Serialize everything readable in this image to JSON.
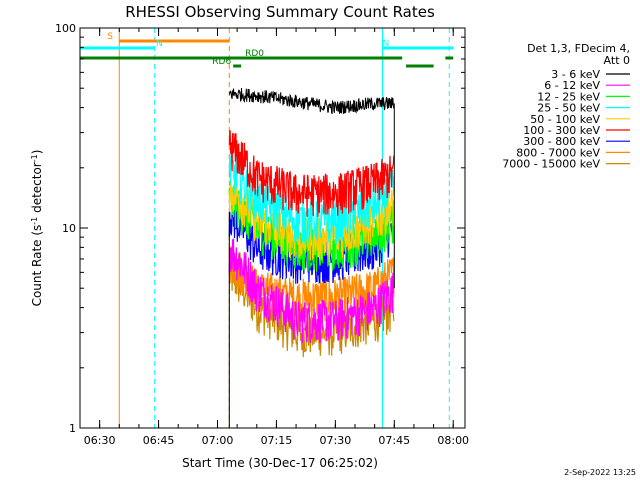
{
  "chart_data": {
    "type": "line",
    "title": "RHESSI Observing Summary Count Rates",
    "xlabel": "Start Time (30-Dec-17 06:25:02)",
    "ylabel": "Count Rate (s⁻¹ detector⁻¹)",
    "ylabel_main": "Count Rate (s",
    "ylabel_sup1": "-1",
    "ylabel_mid": " detector",
    "ylabel_sup2": "-1",
    "ylabel_end": ")",
    "y_scale": "log",
    "ylim": [
      1,
      100
    ],
    "xlim": [
      "06:25",
      "08:03"
    ],
    "x_ticks": [
      "06:30",
      "06:45",
      "07:00",
      "07:15",
      "07:30",
      "07:45",
      "08:00"
    ],
    "y_ticks": [
      "1",
      "10",
      "100"
    ],
    "legend_header": [
      "Det 1,3, FDecim 4,",
      "Att 0"
    ],
    "legend_placement": "right",
    "footer_date": "2-Sep-2022 13:25",
    "series": [
      {
        "name": "3 - 6 keV",
        "color": "#000000",
        "x": [
          "07:03",
          "07:10",
          "07:20",
          "07:30",
          "07:40",
          "07:45"
        ],
        "values": [
          47,
          46,
          43,
          40,
          42,
          42
        ]
      },
      {
        "name": "6 - 12 keV",
        "color": "#ff00ff",
        "x": [
          "07:03",
          "07:10",
          "07:20",
          "07:30",
          "07:40",
          "07:45"
        ],
        "values": [
          8,
          5,
          3.5,
          3.5,
          4,
          5
        ]
      },
      {
        "name": "12 - 25 keV",
        "color": "#00ff00",
        "x": [
          "07:03",
          "07:10",
          "07:20",
          "07:30",
          "07:40",
          "07:45"
        ],
        "values": [
          14,
          10,
          8,
          8,
          9,
          11
        ]
      },
      {
        "name": "25 - 50 keV",
        "color": "#00ffff",
        "x": [
          "07:03",
          "07:10",
          "07:20",
          "07:30",
          "07:40",
          "07:45"
        ],
        "values": [
          20,
          14,
          11,
          11,
          13,
          16
        ]
      },
      {
        "name": "50 - 100 keV",
        "color": "#ffcc00",
        "x": [
          "07:03",
          "07:10",
          "07:20",
          "07:30",
          "07:40",
          "07:45"
        ],
        "values": [
          16,
          11,
          9,
          9,
          11,
          13
        ]
      },
      {
        "name": "100 - 300 keV",
        "color": "#ff0000",
        "x": [
          "07:03",
          "07:10",
          "07:20",
          "07:30",
          "07:40",
          "07:45"
        ],
        "values": [
          26,
          18,
          15,
          15,
          17,
          19
        ]
      },
      {
        "name": "300 - 800 keV",
        "color": "#0000ff",
        "x": [
          "07:03",
          "07:10",
          "07:20",
          "07:30",
          "07:40",
          "07:45"
        ],
        "values": [
          12,
          8,
          7,
          7,
          8,
          10
        ]
      },
      {
        "name": "800 - 7000 keV",
        "color": "#ff8800",
        "x": [
          "07:03",
          "07:10",
          "07:20",
          "07:30",
          "07:40",
          "07:45"
        ],
        "values": [
          7,
          5,
          4.5,
          4.5,
          5,
          6
        ]
      },
      {
        "name": "7000 - 15000 keV",
        "color": "#cc8800",
        "x": [
          "07:03",
          "07:10",
          "07:20",
          "07:30",
          "07:40",
          "07:45"
        ],
        "values": [
          6,
          4,
          3,
          3,
          3.5,
          4
        ]
      }
    ],
    "annotations": [
      {
        "label": "S",
        "color": "#ff8800",
        "x_start": "06:35",
        "x_end": "07:03"
      },
      {
        "label": "N",
        "color": "#00ffff",
        "x_start": "06:25",
        "x_end": "06:44"
      },
      {
        "label": "N",
        "color": "#00ffff",
        "x_start": "07:42",
        "x_end": "08:00"
      },
      {
        "label": "RD0",
        "color": "#008000",
        "x_start": "06:25",
        "x_end": "07:47"
      },
      {
        "label": "",
        "color": "#008000",
        "x_start": "07:48",
        "x_end": "07:55"
      },
      {
        "label": "",
        "color": "#008000",
        "x_start": "07:58",
        "x_end": "08:00"
      },
      {
        "label": "RD6",
        "color": "#008000",
        "x_start": "07:04",
        "x_end": "07:06"
      }
    ],
    "vertical_lines": [
      {
        "x": "06:25",
        "color": "#00ffff",
        "style": "solid"
      },
      {
        "x": "06:35",
        "color": "#ff8800",
        "style": "solid"
      },
      {
        "x": "06:44",
        "color": "#00ffff",
        "style": "dashed"
      },
      {
        "x": "07:03",
        "color": "#ff8800",
        "style": "dashed"
      },
      {
        "x": "07:42",
        "color": "#00ffff",
        "style": "solid"
      },
      {
        "x": "07:59",
        "color": "#00ffff",
        "style": "dashed"
      }
    ]
  }
}
